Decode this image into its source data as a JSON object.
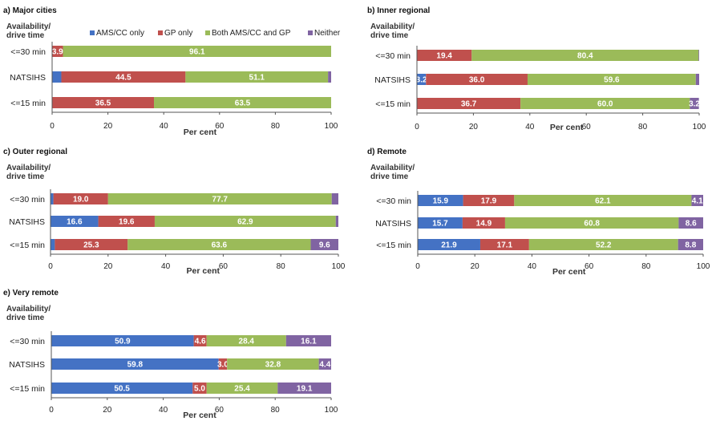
{
  "series_names": [
    "AMS/CC only",
    "GP only",
    "Both AMS/CC and GP",
    "Neither"
  ],
  "colors": {
    "ams": "#4472c4",
    "gp": "#c0504d",
    "both": "#9bbb59",
    "neither": "#8064a2",
    "axis": "#555555"
  },
  "chart_data": [
    {
      "type": "bar",
      "orientation": "horizontal",
      "stacked": true,
      "title": "a) Major cities",
      "ylabel": [
        "Availability/",
        "drive time"
      ],
      "xlabel": "Per cent",
      "xlim": [
        0,
        100
      ],
      "xticks": [
        0,
        20,
        40,
        60,
        80,
        100
      ],
      "legend": "top",
      "categories": [
        "<=30 min",
        "NATSIHS",
        "<=15 min"
      ],
      "series": [
        {
          "name": "AMS/CC only",
          "values": [
            0.0,
            3.3,
            0.0
          ],
          "labels": [
            "",
            "",
            ""
          ]
        },
        {
          "name": "GP only",
          "values": [
            3.9,
            44.5,
            36.5
          ],
          "labels": [
            "3.9",
            "44.5",
            "36.5"
          ]
        },
        {
          "name": "Both AMS/CC and GP",
          "values": [
            96.1,
            51.1,
            63.5
          ],
          "labels": [
            "96.1",
            "51.1",
            "63.5"
          ]
        },
        {
          "name": "Neither",
          "values": [
            0.0,
            1.1,
            0.0
          ],
          "labels": [
            "",
            "",
            ""
          ]
        }
      ]
    },
    {
      "type": "bar",
      "orientation": "horizontal",
      "stacked": true,
      "title": "b) Inner regional",
      "ylabel": [
        "Availability/",
        "drive time"
      ],
      "xlabel": "Per cent",
      "xlim": [
        0,
        100
      ],
      "xticks": [
        0,
        20,
        40,
        60,
        80,
        100
      ],
      "categories": [
        "<=30 min",
        "NATSIHS",
        "<=15 min"
      ],
      "series": [
        {
          "name": "AMS/CC only",
          "values": [
            0.0,
            3.2,
            0.0
          ],
          "labels": [
            "",
            "3.2",
            ""
          ]
        },
        {
          "name": "GP only",
          "values": [
            19.4,
            36.0,
            36.7
          ],
          "labels": [
            "19.4",
            "36.0",
            "36.7"
          ]
        },
        {
          "name": "Both AMS/CC and GP",
          "values": [
            80.4,
            59.6,
            60.0
          ],
          "labels": [
            "80.4",
            "59.6",
            "60.0"
          ]
        },
        {
          "name": "Neither",
          "values": [
            0.2,
            1.2,
            3.2
          ],
          "labels": [
            "",
            "",
            "3.2"
          ]
        }
      ]
    },
    {
      "type": "bar",
      "orientation": "horizontal",
      "stacked": true,
      "title": "c) Outer regional",
      "ylabel": [
        "Availability/",
        "drive time"
      ],
      "xlabel": "Per cent",
      "xlim": [
        0,
        100
      ],
      "xticks": [
        0,
        20,
        40,
        60,
        80,
        100
      ],
      "categories": [
        "<=30 min",
        "NATSIHS",
        "<=15 min"
      ],
      "series": [
        {
          "name": "AMS/CC only",
          "values": [
            1.0,
            16.6,
            1.5
          ],
          "labels": [
            "",
            "16.6",
            ""
          ]
        },
        {
          "name": "GP only",
          "values": [
            19.0,
            19.6,
            25.3
          ],
          "labels": [
            "19.0",
            "19.6",
            "25.3"
          ]
        },
        {
          "name": "Both AMS/CC and GP",
          "values": [
            77.7,
            62.9,
            63.6
          ],
          "labels": [
            "77.7",
            "62.9",
            "63.6"
          ]
        },
        {
          "name": "Neither",
          "values": [
            2.3,
            0.9,
            9.6
          ],
          "labels": [
            "",
            "",
            "9.6"
          ]
        }
      ]
    },
    {
      "type": "bar",
      "orientation": "horizontal",
      "stacked": true,
      "title": "d) Remote",
      "ylabel": [
        "Availability/",
        "drive time"
      ],
      "xlabel": "Per cent",
      "xlim": [
        0,
        100
      ],
      "xticks": [
        0,
        20,
        40,
        60,
        80,
        100
      ],
      "categories": [
        "<=30 min",
        "NATSIHS",
        "<=15 min"
      ],
      "series": [
        {
          "name": "AMS/CC only",
          "values": [
            15.9,
            15.7,
            21.9
          ],
          "labels": [
            "15.9",
            "15.7",
            "21.9"
          ]
        },
        {
          "name": "GP only",
          "values": [
            17.9,
            14.9,
            17.1
          ],
          "labels": [
            "17.9",
            "14.9",
            "17.1"
          ]
        },
        {
          "name": "Both AMS/CC and GP",
          "values": [
            62.1,
            60.8,
            52.2
          ],
          "labels": [
            "62.1",
            "60.8",
            "52.2"
          ]
        },
        {
          "name": "Neither",
          "values": [
            4.1,
            8.6,
            8.8
          ],
          "labels": [
            "4.1",
            "8.6",
            "8.8"
          ]
        }
      ]
    },
    {
      "type": "bar",
      "orientation": "horizontal",
      "stacked": true,
      "title": "e) Very remote",
      "ylabel": [
        "Availability/",
        "drive time"
      ],
      "xlabel": "Per cent",
      "xlim": [
        0,
        100
      ],
      "xticks": [
        0,
        20,
        40,
        60,
        80,
        100
      ],
      "categories": [
        "<=30 min",
        "NATSIHS",
        "<=15 min"
      ],
      "series": [
        {
          "name": "AMS/CC only",
          "values": [
            50.9,
            59.8,
            50.5
          ],
          "labels": [
            "50.9",
            "59.8",
            "50.5"
          ]
        },
        {
          "name": "GP only",
          "values": [
            4.6,
            3.0,
            5.0
          ],
          "labels": [
            "4.6",
            "3.0",
            "5.0"
          ]
        },
        {
          "name": "Both AMS/CC and GP",
          "values": [
            28.4,
            32.8,
            25.4
          ],
          "labels": [
            "28.4",
            "32.8",
            "25.4"
          ]
        },
        {
          "name": "Neither",
          "values": [
            16.1,
            4.4,
            19.1
          ],
          "labels": [
            "16.1",
            "4.4",
            "19.1"
          ]
        }
      ]
    }
  ]
}
